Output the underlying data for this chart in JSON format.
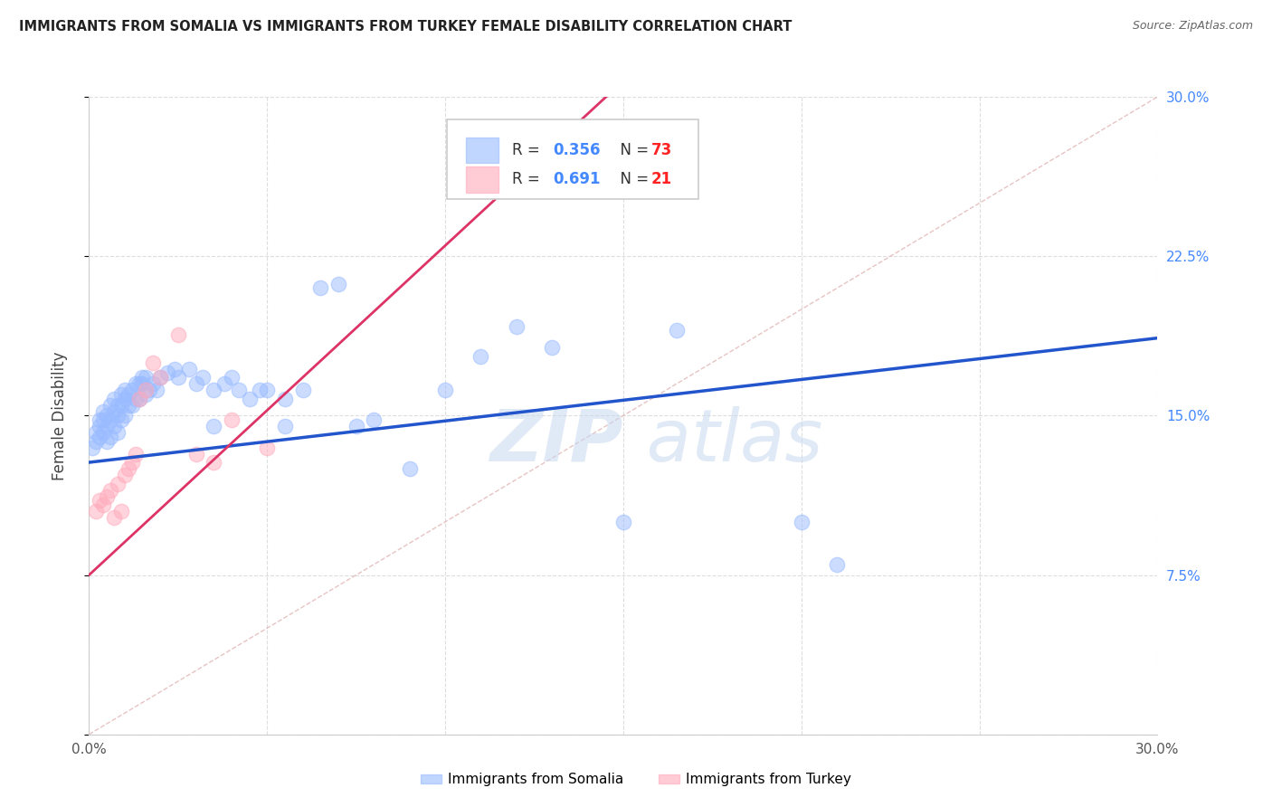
{
  "title": "IMMIGRANTS FROM SOMALIA VS IMMIGRANTS FROM TURKEY FEMALE DISABILITY CORRELATION CHART",
  "source": "Source: ZipAtlas.com",
  "ylabel": "Female Disability",
  "xlim": [
    0.0,
    0.3
  ],
  "ylim": [
    0.0,
    0.3
  ],
  "somalia_color": "#99bbff",
  "turkey_color": "#ffaabb",
  "somalia_line_color": "#2255cc",
  "turkey_line_color": "#dd3366",
  "diagonal_color": "#ccaaaa",
  "grid_color": "#dddddd",
  "right_tick_color": "#4488ff",
  "bg_color": "#ffffff",
  "somalia_R": 0.356,
  "somalia_N": 73,
  "turkey_R": 0.691,
  "turkey_N": 21,
  "R_text_color": "#4488ff",
  "N_text_color": "#ff2222",
  "source_text": "Source: ZipAtlas.com",
  "somalia_x": [
    0.001,
    0.002,
    0.002,
    0.003,
    0.003,
    0.003,
    0.004,
    0.004,
    0.004,
    0.005,
    0.005,
    0.005,
    0.006,
    0.006,
    0.006,
    0.007,
    0.007,
    0.007,
    0.008,
    0.008,
    0.008,
    0.009,
    0.009,
    0.009,
    0.01,
    0.01,
    0.01,
    0.011,
    0.011,
    0.012,
    0.012,
    0.013,
    0.013,
    0.014,
    0.014,
    0.015,
    0.015,
    0.016,
    0.016,
    0.017,
    0.018,
    0.019,
    0.02,
    0.022,
    0.024,
    0.025,
    0.028,
    0.03,
    0.032,
    0.035,
    0.038,
    0.04,
    0.042,
    0.045,
    0.048,
    0.05,
    0.055,
    0.06,
    0.065,
    0.07,
    0.075,
    0.08,
    0.09,
    0.1,
    0.11,
    0.12,
    0.13,
    0.15,
    0.165,
    0.2,
    0.21,
    0.055,
    0.035
  ],
  "somalia_y": [
    0.135,
    0.138,
    0.142,
    0.14,
    0.145,
    0.148,
    0.142,
    0.148,
    0.152,
    0.138,
    0.145,
    0.15,
    0.14,
    0.148,
    0.155,
    0.145,
    0.152,
    0.158,
    0.142,
    0.15,
    0.155,
    0.148,
    0.155,
    0.16,
    0.15,
    0.158,
    0.162,
    0.155,
    0.16,
    0.155,
    0.162,
    0.158,
    0.165,
    0.158,
    0.165,
    0.165,
    0.168,
    0.16,
    0.168,
    0.162,
    0.165,
    0.162,
    0.168,
    0.17,
    0.172,
    0.168,
    0.172,
    0.165,
    0.168,
    0.162,
    0.165,
    0.168,
    0.162,
    0.158,
    0.162,
    0.162,
    0.158,
    0.162,
    0.21,
    0.212,
    0.145,
    0.148,
    0.125,
    0.162,
    0.178,
    0.192,
    0.182,
    0.1,
    0.19,
    0.1,
    0.08,
    0.145,
    0.145
  ],
  "turkey_x": [
    0.002,
    0.003,
    0.004,
    0.005,
    0.006,
    0.007,
    0.008,
    0.009,
    0.01,
    0.011,
    0.012,
    0.013,
    0.014,
    0.016,
    0.018,
    0.02,
    0.025,
    0.03,
    0.035,
    0.04,
    0.05
  ],
  "turkey_y": [
    0.105,
    0.11,
    0.108,
    0.112,
    0.115,
    0.102,
    0.118,
    0.105,
    0.122,
    0.125,
    0.128,
    0.132,
    0.158,
    0.162,
    0.175,
    0.168,
    0.188,
    0.132,
    0.128,
    0.148,
    0.135
  ]
}
